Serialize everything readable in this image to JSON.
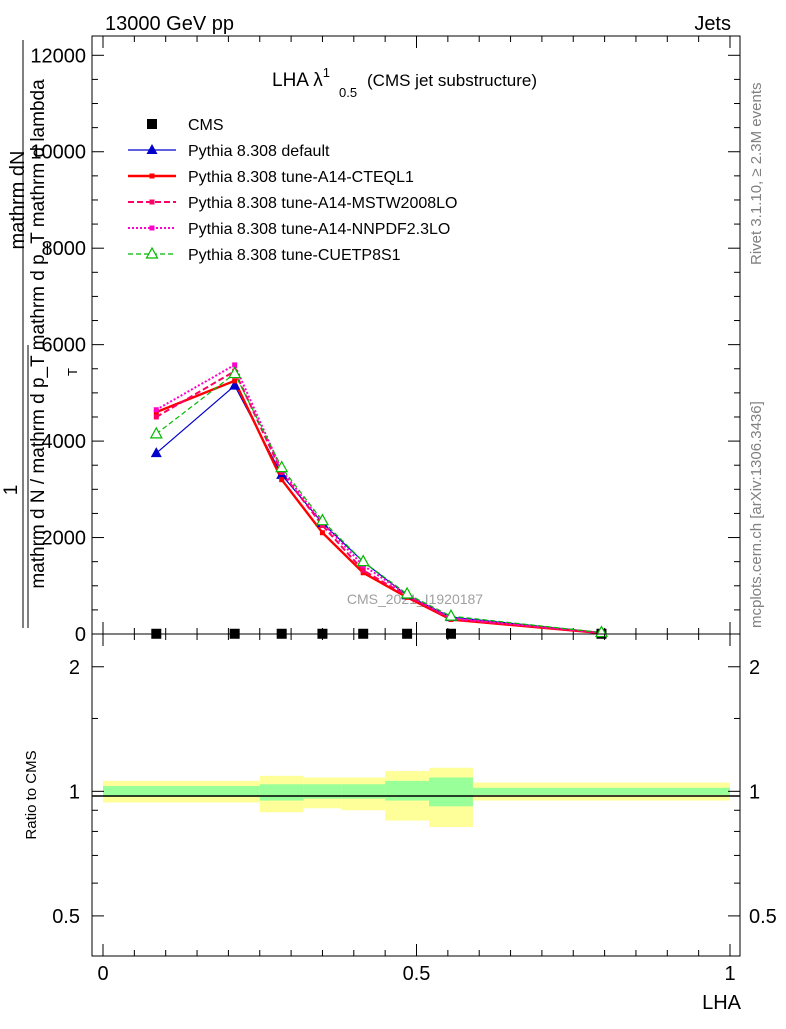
{
  "header": {
    "beam": "13000 GeV pp",
    "process": "Jets"
  },
  "side_labels": {
    "rivet": "Rivet 3.1.10, ≥ 2.3M events",
    "source": "mcplots.cern.ch [arXiv:1306.3436]"
  },
  "colors": {
    "cms": "#000000",
    "default": "#0000cc",
    "cteql1": "#ff0000",
    "mstw": "#ff0066",
    "nnpdf": "#ff00cc",
    "cuetp8s1": "#00bb00",
    "band_outer": "#ffff99",
    "band_inner": "#99ff99"
  },
  "chart_data": [
    {
      "type": "line",
      "title": "LHA λ",
      "title_sup": "1",
      "title_sub": "0.5",
      "title_suffix": "(CMS jet substructure)",
      "watermark": "CMS_2021_I1920187",
      "ylabel_numerator": "mathrm dN",
      "ylabel_main": "mathrm d N / mathrm d p_T mathrm d p_T mathrm d lambda",
      "ylabel_sub": "T",
      "ylabel_one": "1",
      "xlim": [
        0,
        1
      ],
      "ylim": [
        0,
        12400
      ],
      "y_ticks": [
        "0",
        "2000",
        "4000",
        "6000",
        "8000",
        "10000",
        "12000"
      ],
      "x": [
        0.085,
        0.21,
        0.285,
        0.35,
        0.415,
        0.485,
        0.555,
        0.795
      ],
      "series": [
        {
          "name": "CMS",
          "key": "cms",
          "marker": "square",
          "values": [
            5,
            5,
            5,
            5,
            5,
            5,
            5,
            5
          ]
        },
        {
          "name": "Pythia 8.308 default",
          "key": "default",
          "marker": "triangle",
          "values": [
            3750,
            5150,
            3300,
            2300,
            1500,
            800,
            350,
            30
          ]
        },
        {
          "name": "Pythia 8.308 tune-A14-CTEQL1",
          "key": "cteql1",
          "marker": "dot",
          "values": [
            4600,
            5250,
            3200,
            2100,
            1270,
            760,
            300,
            20
          ]
        },
        {
          "name": "Pythia 8.308 tune-A14-MSTW2008LO",
          "key": "mstw",
          "marker": "dot",
          "values": [
            4500,
            5450,
            3350,
            2250,
            1320,
            790,
            310,
            25
          ]
        },
        {
          "name": "Pythia 8.308 tune-A14-NNPDF2.3LO",
          "key": "nnpdf",
          "marker": "dot",
          "values": [
            4650,
            5580,
            3400,
            2300,
            1420,
            820,
            330,
            25
          ]
        },
        {
          "name": "Pythia 8.308 tune-CUETP8S1",
          "key": "cuetp8s1",
          "marker": "open-triangle",
          "values": [
            4150,
            5400,
            3450,
            2350,
            1500,
            830,
            370,
            30
          ]
        }
      ]
    },
    {
      "type": "area",
      "ylabel": "Ratio to CMS",
      "xlabel": "LHA",
      "xlim": [
        0,
        1
      ],
      "ylim": [
        0.4,
        2.4
      ],
      "log_y": true,
      "x_ticks": [
        "0",
        "0.5",
        "1"
      ],
      "y_ticks": [
        "0.5",
        "1",
        "2"
      ],
      "bins": [
        {
          "x0": 0.0,
          "x1": 0.25,
          "inner": [
            0.97,
            1.03
          ],
          "outer": [
            0.94,
            1.06
          ]
        },
        {
          "x0": 0.25,
          "x1": 0.32,
          "inner": [
            0.95,
            1.04
          ],
          "outer": [
            0.89,
            1.09
          ]
        },
        {
          "x0": 0.32,
          "x1": 0.38,
          "inner": [
            0.96,
            1.04
          ],
          "outer": [
            0.91,
            1.08
          ]
        },
        {
          "x0": 0.38,
          "x1": 0.45,
          "inner": [
            0.96,
            1.04
          ],
          "outer": [
            0.9,
            1.08
          ]
        },
        {
          "x0": 0.45,
          "x1": 0.52,
          "inner": [
            0.95,
            1.06
          ],
          "outer": [
            0.85,
            1.12
          ]
        },
        {
          "x0": 0.52,
          "x1": 0.59,
          "inner": [
            0.92,
            1.08
          ],
          "outer": [
            0.82,
            1.14
          ]
        },
        {
          "x0": 0.59,
          "x1": 1.0,
          "inner": [
            0.98,
            1.02
          ],
          "outer": [
            0.95,
            1.05
          ]
        }
      ]
    }
  ]
}
